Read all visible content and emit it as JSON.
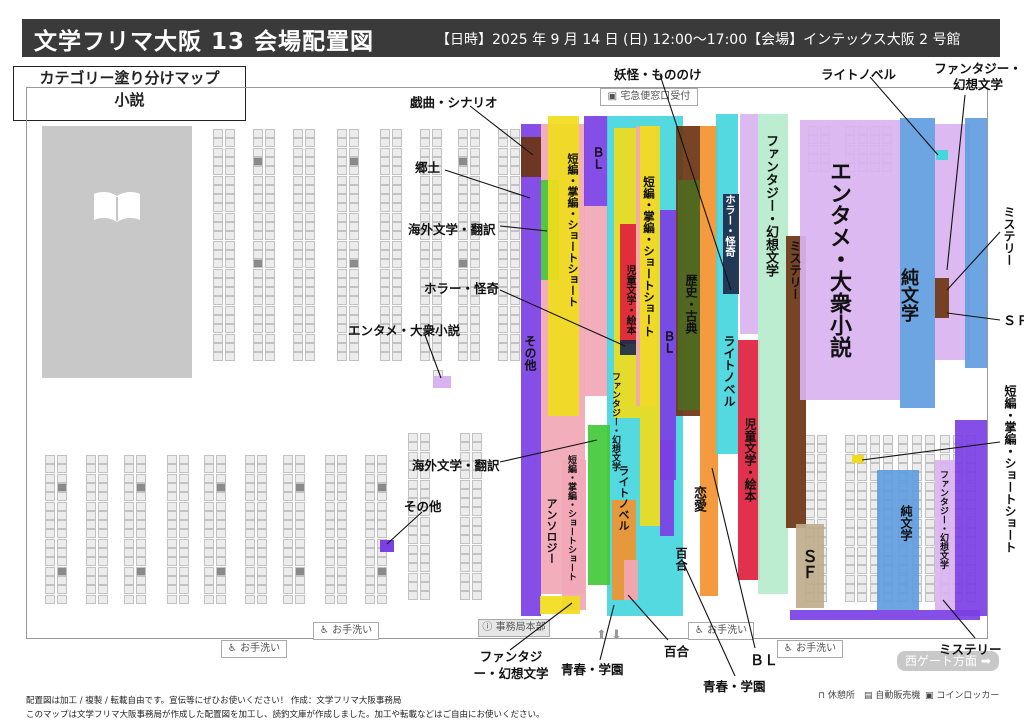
{
  "header": {
    "title": "文学フリマ大阪 13 会場配置図",
    "info": "【日時】2025 年 9 月 14 日 (日) 12:00〜17:00【会場】インテックス大阪 2 号館"
  },
  "category_box": {
    "line1": "カテゴリー塗り分けマップ",
    "line2": "小説"
  },
  "facilities": {
    "delivery": "宅急便窓口受付",
    "restroom": "お手洗い",
    "office": "事務局本部",
    "west_gate": "西ゲート方面"
  },
  "labels": {
    "gikyoku": "戯曲・シナリオ",
    "kyodo": "郷土",
    "kaigai1": "海外文学・翻訳",
    "horror1": "ホラー・怪奇",
    "entame1": "エンタメ・大衆小説",
    "kaigai2": "海外文学・翻訳",
    "sonota1": "その他",
    "fantasy_bottom": "ファンタジー・幻想文学",
    "seishun1": "青春・学園",
    "yuri_bottom": "百合",
    "seishun2": "青春・学園",
    "bl_bottom": "ＢＬ",
    "youkai": "妖怪・もののけ",
    "light_top": "ライトノベル",
    "fantasy_top": "ファンタジー・幻想文学",
    "mystery_right": "ミステリー",
    "sf_right": "ＳＦ",
    "tanpen_right": "短編・掌編・ショートショート",
    "mystery_bottom": "ミステリー"
  },
  "vertical_labels": {
    "sonota2": "その他",
    "tanpen1": "短編・掌編・ショートショート",
    "bl1": "ＢＬ",
    "tanpen2": "短編・掌編・ショートショート",
    "jidou1": "児童文学・絵本",
    "bl2": "ＢＬ",
    "rekishi": "歴史・古典",
    "horror2": "ホラー・怪奇",
    "fantasy1": "ファンタジー・幻想文学",
    "mystery1": "ミステリー",
    "entame_big": "エンタメ・大衆小説",
    "junbun1": "純文学",
    "fantasy2": "ファンタジー・幻想文学",
    "tanpen3": "短編・掌編・ショートショート",
    "anthology": "アンソロジー",
    "light2": "ライトノベル",
    "light3": "ライトノベル",
    "jidou2": "児童文学・絵本",
    "renai": "恋愛",
    "yuri": "百合",
    "sf": "ＳＦ",
    "junbun2": "純文学",
    "fantasy3": "ファンタジー・幻想文学"
  },
  "legend": {
    "rest": "休憩所",
    "vending": "自動販売機",
    "locker": "コインロッカー"
  },
  "footer": {
    "line1": "配置図は加工 / 複製 / 転載自由です。宣伝等にぜひお使いください！ 作成：文学フリマ大阪事務局",
    "line2": "このマップは文学フリマ大阪事務局が作成した配置図を加工し、読釣文庫が作成しました。加工や転載などはご自由にお使いください。"
  },
  "colors": {
    "purple": "#7b3fe4",
    "pink": "#f2a7b5",
    "yellow": "#f1dc1c",
    "green": "#43c93a",
    "orange": "#f2922e",
    "cyan": "#45d6de",
    "blue": "#5f9de0",
    "lavender": "#d9b3f0",
    "brown": "#6b3512",
    "olive": "#4f6a1f",
    "red": "#e01f3d",
    "mint": "#b7eccd",
    "navy": "#1d2b4a",
    "khaki": "#bfae8c",
    "gray": "#c8c8c8"
  }
}
